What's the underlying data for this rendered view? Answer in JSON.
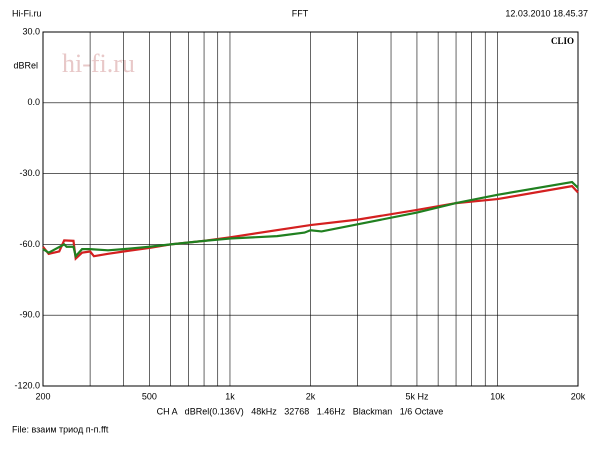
{
  "chart_data": {
    "type": "line",
    "header_left": "Hi-Fi.ru",
    "title": "FFT",
    "header_right": "12.03.2010 18.45.37",
    "brand": "CLIO",
    "watermark": "hi-fi.ru",
    "y_label": "dBRel",
    "footer": "CH A   dBRel(0.136V)   48kHz   32768   1.46Hz   Blackman   1/6 Octave",
    "file": "File: взаим триод п-п.fft",
    "log_x": true,
    "grid": true,
    "xlim": [
      200,
      20000
    ],
    "xticks": [
      {
        "value": 200,
        "label": "200"
      },
      {
        "value": 500,
        "label": "500"
      },
      {
        "value": 1000,
        "label": "1k"
      },
      {
        "value": 2000,
        "label": "2k"
      },
      {
        "value": 5000,
        "label": "5k Hz"
      },
      {
        "value": 10000,
        "label": "10k"
      },
      {
        "value": 20000,
        "label": "20k"
      }
    ],
    "xminor": [
      300,
      400,
      600,
      700,
      800,
      900,
      3000,
      4000,
      6000,
      7000,
      8000,
      9000
    ],
    "ylim": [
      -120,
      30
    ],
    "yticks": [
      {
        "value": 30,
        "label": "30.0"
      },
      {
        "value": 0,
        "label": "0.0"
      },
      {
        "value": -30,
        "label": "-30.0"
      },
      {
        "value": -60,
        "label": "-60.0"
      },
      {
        "value": -90,
        "label": "-90.0"
      },
      {
        "value": -120,
        "label": "-120.0"
      }
    ],
    "series": [
      {
        "color": "#d42020",
        "x": [
          200,
          210,
          230,
          240,
          260,
          265,
          280,
          300,
          310,
          350,
          400,
          500,
          600,
          800,
          1000,
          2000,
          3000,
          5000,
          7000,
          10000,
          19000,
          20000
        ],
        "values": [
          -61,
          -64,
          -63,
          -58.3,
          -58.5,
          -66,
          -63.5,
          -63,
          -65,
          -64,
          -63,
          -61.5,
          -60,
          -58.5,
          -57,
          -51.8,
          -49.5,
          -45.4,
          -42.5,
          -40.8,
          -35.3,
          -38
        ]
      },
      {
        "color": "#208020",
        "x": [
          200,
          210,
          240,
          245,
          260,
          265,
          280,
          300,
          350,
          400,
          500,
          600,
          800,
          1000,
          1500,
          1900,
          2000,
          2200,
          3000,
          5000,
          7000,
          10000,
          19000,
          20000
        ],
        "values": [
          -62,
          -63.5,
          -60,
          -61,
          -61,
          -65,
          -62,
          -62,
          -62.5,
          -62,
          -61,
          -60,
          -58.5,
          -57.5,
          -56.5,
          -55,
          -54,
          -54.5,
          -51.5,
          -46.5,
          -42.5,
          -39,
          -33.6,
          -36
        ]
      }
    ]
  }
}
